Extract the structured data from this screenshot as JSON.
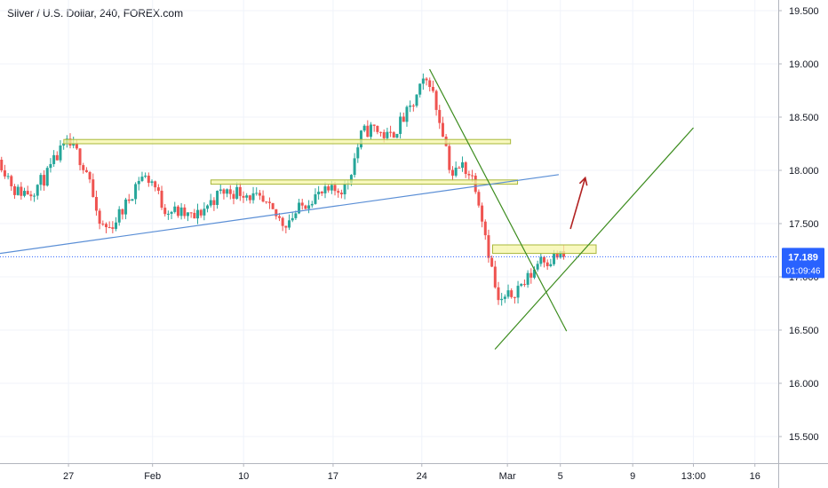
{
  "title": "Silver / U.S. Dollar, 240, FOREX.com",
  "price_label": {
    "value": "17.189",
    "timer": "01:09:46",
    "color": "#2962ff"
  },
  "colors": {
    "up": "#26a69a",
    "down": "#ef5350",
    "grid": "#f0f3fa",
    "trend_blue": "#5b8fd6",
    "trend_green": "#3c8c1e",
    "zone_fill": "#f5f5a8",
    "zone_stroke": "#a9b83a",
    "arrow": "#b22222"
  },
  "chart_data": {
    "type": "candlestick",
    "title": "Silver / U.S. Dollar, 240, FOREX.com",
    "y_range": [
      15.25,
      19.6
    ],
    "x_range": [
      0,
      100
    ],
    "y_ticks": [
      19.5,
      19.0,
      18.5,
      18.0,
      17.5,
      17.0,
      16.5,
      16.0,
      15.5
    ],
    "y_tick_labels": [
      "19.500",
      "19.000",
      "18.500",
      "18.000",
      "17.500",
      "17.000",
      "16.500",
      "16.000",
      "15.500"
    ],
    "x_ticks": [
      {
        "x": 8.8,
        "label": "27"
      },
      {
        "x": 19.6,
        "label": "Feb"
      },
      {
        "x": 31.3,
        "label": "10"
      },
      {
        "x": 42.8,
        "label": "17"
      },
      {
        "x": 54.2,
        "label": "24"
      },
      {
        "x": 65.2,
        "label": "Mar"
      },
      {
        "x": 72.0,
        "label": "5"
      },
      {
        "x": 81.3,
        "label": "9"
      },
      {
        "x": 89.1,
        "label": "13:00"
      },
      {
        "x": 97.0,
        "label": "16"
      }
    ],
    "current_price": 17.189,
    "path": [
      [
        0,
        18.1
      ],
      [
        2,
        17.8
      ],
      [
        4,
        17.8
      ],
      [
        6,
        17.95
      ],
      [
        7.5,
        18.15
      ],
      [
        8.8,
        18.25
      ],
      [
        10,
        18.15
      ],
      [
        11.5,
        17.95
      ],
      [
        12.5,
        17.5
      ],
      [
        14,
        17.45
      ],
      [
        16,
        17.65
      ],
      [
        18,
        17.95
      ],
      [
        19.6,
        17.9
      ],
      [
        21,
        17.65
      ],
      [
        23,
        17.6
      ],
      [
        25,
        17.55
      ],
      [
        27,
        17.7
      ],
      [
        28.5,
        17.8
      ],
      [
        31.3,
        17.8
      ],
      [
        33.5,
        17.7
      ],
      [
        35,
        17.6
      ],
      [
        36.5,
        17.5
      ],
      [
        38,
        17.6
      ],
      [
        40,
        17.75
      ],
      [
        42.8,
        17.8
      ],
      [
        44.5,
        17.85
      ],
      [
        45.5,
        18.1
      ],
      [
        46.5,
        18.35
      ],
      [
        48,
        18.4
      ],
      [
        50,
        18.3
      ],
      [
        51.5,
        18.45
      ],
      [
        53,
        18.6
      ],
      [
        54.2,
        18.8
      ],
      [
        55.2,
        18.85
      ],
      [
        56,
        18.6
      ],
      [
        57,
        18.35
      ],
      [
        58,
        17.95
      ],
      [
        59.5,
        18.05
      ],
      [
        61,
        17.9
      ],
      [
        62,
        17.55
      ],
      [
        63,
        17.15
      ],
      [
        64,
        16.75
      ],
      [
        65.2,
        16.8
      ],
      [
        66.5,
        16.9
      ],
      [
        67.5,
        16.95
      ],
      [
        68.5,
        17.05
      ],
      [
        69.5,
        17.2
      ],
      [
        70.5,
        17.15
      ],
      [
        71.5,
        17.2
      ],
      [
        72.5,
        17.19
      ]
    ],
    "zones": [
      {
        "x1": 8.2,
        "x2": 65.6,
        "y1": 18.29,
        "y2": 18.25
      },
      {
        "x1": 27.1,
        "x2": 66.5,
        "y1": 17.91,
        "y2": 17.87
      },
      {
        "x1": 63.3,
        "x2": 76.6,
        "y1": 17.3,
        "y2": 17.22
      }
    ],
    "trendlines": [
      {
        "from": [
          0,
          17.22
        ],
        "to": [
          71.8,
          17.96
        ],
        "color": "trend_blue"
      },
      {
        "from": [
          55.2,
          18.95
        ],
        "to": [
          72.8,
          16.49
        ],
        "color": "trend_green"
      },
      {
        "from": [
          63.6,
          16.32
        ],
        "to": [
          89.1,
          18.4
        ],
        "color": "trend_green"
      }
    ],
    "arrow": {
      "from": [
        73.3,
        17.45
      ],
      "to": [
        75.2,
        17.93
      ]
    }
  }
}
